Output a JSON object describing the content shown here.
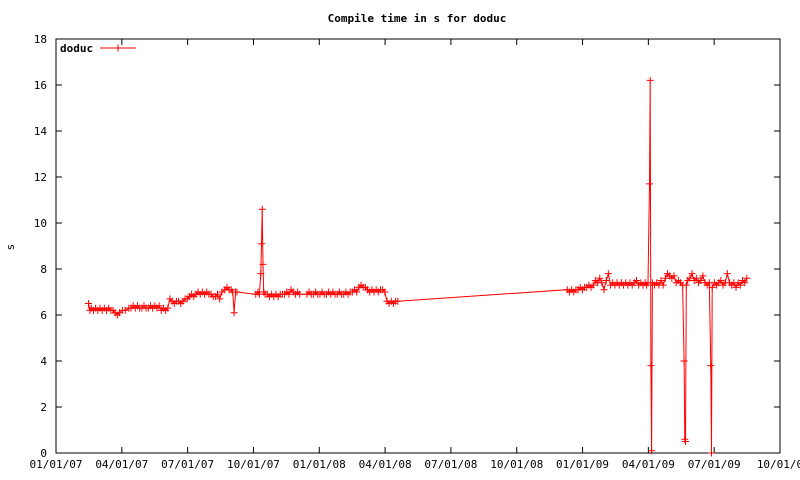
{
  "chart_data": {
    "type": "line",
    "title": "Compile time in s for doduc",
    "xlabel": "",
    "ylabel": "s",
    "x_ticks": [
      "01/01/07",
      "04/01/07",
      "07/01/07",
      "10/01/07",
      "01/01/08",
      "04/01/08",
      "07/01/08",
      "10/01/08",
      "01/01/09",
      "04/01/09",
      "07/01/09",
      "10/01/0"
    ],
    "y_ticks": [
      "0",
      "2",
      "4",
      "6",
      "8",
      "10",
      "12",
      "14",
      "16",
      "18"
    ],
    "xlim": [
      "2007-01-01",
      "2009-10-01"
    ],
    "ylim": [
      0,
      18
    ],
    "grid": false,
    "legend_position": "top-left",
    "series": [
      {
        "name": "doduc",
        "color": "#ff0000",
        "marker": "plus",
        "points": [
          [
            "2007-02-15",
            6.5
          ],
          [
            "2007-02-17",
            6.2
          ],
          [
            "2007-02-19",
            6.3
          ],
          [
            "2007-02-22",
            6.2
          ],
          [
            "2007-02-25",
            6.3
          ],
          [
            "2007-02-28",
            6.2
          ],
          [
            "2007-03-03",
            6.3
          ],
          [
            "2007-03-06",
            6.2
          ],
          [
            "2007-03-09",
            6.3
          ],
          [
            "2007-03-12",
            6.2
          ],
          [
            "2007-03-15",
            6.3
          ],
          [
            "2007-03-18",
            6.2
          ],
          [
            "2007-03-21",
            6.2
          ],
          [
            "2007-03-24",
            6.1
          ],
          [
            "2007-03-27",
            6.0
          ],
          [
            "2007-03-30",
            6.1
          ],
          [
            "2007-04-03",
            6.2
          ],
          [
            "2007-04-07",
            6.2
          ],
          [
            "2007-04-12",
            6.3
          ],
          [
            "2007-04-15",
            6.3
          ],
          [
            "2007-04-18",
            6.4
          ],
          [
            "2007-04-21",
            6.3
          ],
          [
            "2007-04-24",
            6.4
          ],
          [
            "2007-04-27",
            6.3
          ],
          [
            "2007-04-30",
            6.3
          ],
          [
            "2007-05-03",
            6.4
          ],
          [
            "2007-05-06",
            6.3
          ],
          [
            "2007-05-09",
            6.3
          ],
          [
            "2007-05-12",
            6.4
          ],
          [
            "2007-05-15",
            6.3
          ],
          [
            "2007-05-18",
            6.4
          ],
          [
            "2007-05-21",
            6.3
          ],
          [
            "2007-05-24",
            6.4
          ],
          [
            "2007-05-27",
            6.2
          ],
          [
            "2007-05-30",
            6.3
          ],
          [
            "2007-06-02",
            6.2
          ],
          [
            "2007-06-05",
            6.3
          ],
          [
            "2007-06-08",
            6.7
          ],
          [
            "2007-06-11",
            6.6
          ],
          [
            "2007-06-14",
            6.5
          ],
          [
            "2007-06-17",
            6.6
          ],
          [
            "2007-06-20",
            6.6
          ],
          [
            "2007-06-23",
            6.5
          ],
          [
            "2007-06-26",
            6.6
          ],
          [
            "2007-06-29",
            6.7
          ],
          [
            "2007-07-02",
            6.7
          ],
          [
            "2007-07-05",
            6.8
          ],
          [
            "2007-07-08",
            6.9
          ],
          [
            "2007-07-11",
            6.8
          ],
          [
            "2007-07-14",
            6.9
          ],
          [
            "2007-07-17",
            7.0
          ],
          [
            "2007-07-20",
            6.9
          ],
          [
            "2007-07-23",
            7.0
          ],
          [
            "2007-07-26",
            6.9
          ],
          [
            "2007-07-29",
            7.0
          ],
          [
            "2007-08-01",
            6.9
          ],
          [
            "2007-08-04",
            6.9
          ],
          [
            "2007-08-07",
            6.8
          ],
          [
            "2007-08-10",
            6.8
          ],
          [
            "2007-08-13",
            6.9
          ],
          [
            "2007-08-16",
            6.7
          ],
          [
            "2007-08-19",
            7.0
          ],
          [
            "2007-08-23",
            7.1
          ],
          [
            "2007-08-26",
            7.2
          ],
          [
            "2007-08-29",
            7.1
          ],
          [
            "2007-09-01",
            7.1
          ],
          [
            "2007-09-03",
            7.0
          ],
          [
            "2007-09-05",
            6.1
          ],
          [
            "2007-09-07",
            7.0
          ],
          [
            "2007-09-09",
            7.0
          ],
          [
            "2007-10-05",
            6.9
          ],
          [
            "2007-10-08",
            7.0
          ],
          [
            "2007-10-10",
            6.9
          ],
          [
            "2007-10-12",
            7.8
          ],
          [
            "2007-10-13",
            9.1
          ],
          [
            "2007-10-14",
            10.6
          ],
          [
            "2007-10-15",
            8.2
          ],
          [
            "2007-10-16",
            7.0
          ],
          [
            "2007-10-18",
            6.9
          ],
          [
            "2007-10-21",
            6.9
          ],
          [
            "2007-10-24",
            6.8
          ],
          [
            "2007-10-27",
            6.9
          ],
          [
            "2007-10-30",
            6.8
          ],
          [
            "2007-11-02",
            6.9
          ],
          [
            "2007-11-05",
            6.8
          ],
          [
            "2007-11-08",
            6.9
          ],
          [
            "2007-11-11",
            6.9
          ],
          [
            "2007-11-14",
            6.9
          ],
          [
            "2007-11-17",
            7.0
          ],
          [
            "2007-11-20",
            6.9
          ],
          [
            "2007-11-23",
            7.1
          ],
          [
            "2007-11-26",
            7.0
          ],
          [
            "2007-11-29",
            6.9
          ],
          [
            "2007-12-02",
            7.0
          ],
          [
            "2007-12-05",
            6.9
          ],
          [
            "2007-12-15",
            6.9
          ],
          [
            "2007-12-18",
            7.0
          ],
          [
            "2007-12-21",
            6.9
          ],
          [
            "2007-12-24",
            6.9
          ],
          [
            "2007-12-27",
            7.0
          ],
          [
            "2007-12-30",
            6.9
          ],
          [
            "2008-01-02",
            6.9
          ],
          [
            "2008-01-05",
            7.0
          ],
          [
            "2008-01-08",
            6.9
          ],
          [
            "2008-01-11",
            6.9
          ],
          [
            "2008-01-14",
            7.0
          ],
          [
            "2008-01-17",
            6.9
          ],
          [
            "2008-01-20",
            7.0
          ],
          [
            "2008-01-23",
            6.9
          ],
          [
            "2008-01-26",
            6.9
          ],
          [
            "2008-01-29",
            7.0
          ],
          [
            "2008-02-01",
            6.9
          ],
          [
            "2008-02-04",
            6.9
          ],
          [
            "2008-02-07",
            7.0
          ],
          [
            "2008-02-10",
            6.9
          ],
          [
            "2008-02-13",
            7.0
          ],
          [
            "2008-02-16",
            7.0
          ],
          [
            "2008-02-19",
            7.1
          ],
          [
            "2008-02-22",
            7.0
          ],
          [
            "2008-02-25",
            7.2
          ],
          [
            "2008-02-28",
            7.3
          ],
          [
            "2008-03-02",
            7.2
          ],
          [
            "2008-03-05",
            7.2
          ],
          [
            "2008-03-08",
            7.1
          ],
          [
            "2008-03-11",
            7.0
          ],
          [
            "2008-03-14",
            7.1
          ],
          [
            "2008-03-17",
            7.0
          ],
          [
            "2008-03-20",
            7.1
          ],
          [
            "2008-03-23",
            7.0
          ],
          [
            "2008-03-26",
            7.1
          ],
          [
            "2008-03-29",
            7.1
          ],
          [
            "2008-04-01",
            7.0
          ],
          [
            "2008-04-04",
            6.6
          ],
          [
            "2008-04-07",
            6.5
          ],
          [
            "2008-04-10",
            6.6
          ],
          [
            "2008-04-13",
            6.5
          ],
          [
            "2008-04-16",
            6.6
          ],
          [
            "2008-04-19",
            6.6
          ],
          [
            "2008-12-10",
            7.1
          ],
          [
            "2008-12-13",
            7.0
          ],
          [
            "2008-12-16",
            7.1
          ],
          [
            "2008-12-19",
            7.0
          ],
          [
            "2008-12-22",
            7.1
          ],
          [
            "2008-12-25",
            7.1
          ],
          [
            "2008-12-28",
            7.2
          ],
          [
            "2008-12-31",
            7.1
          ],
          [
            "2009-01-03",
            7.2
          ],
          [
            "2009-01-06",
            7.2
          ],
          [
            "2009-01-09",
            7.3
          ],
          [
            "2009-01-12",
            7.2
          ],
          [
            "2009-01-15",
            7.3
          ],
          [
            "2009-01-18",
            7.5
          ],
          [
            "2009-01-21",
            7.4
          ],
          [
            "2009-01-24",
            7.6
          ],
          [
            "2009-01-27",
            7.4
          ],
          [
            "2009-01-30",
            7.1
          ],
          [
            "2009-02-02",
            7.5
          ],
          [
            "2009-02-05",
            7.8
          ],
          [
            "2009-02-08",
            7.3
          ],
          [
            "2009-02-11",
            7.4
          ],
          [
            "2009-02-14",
            7.3
          ],
          [
            "2009-02-17",
            7.4
          ],
          [
            "2009-02-20",
            7.3
          ],
          [
            "2009-02-23",
            7.4
          ],
          [
            "2009-02-26",
            7.3
          ],
          [
            "2009-03-01",
            7.4
          ],
          [
            "2009-03-04",
            7.3
          ],
          [
            "2009-03-07",
            7.4
          ],
          [
            "2009-03-10",
            7.3
          ],
          [
            "2009-03-13",
            7.4
          ],
          [
            "2009-03-16",
            7.5
          ],
          [
            "2009-03-19",
            7.3
          ],
          [
            "2009-03-22",
            7.4
          ],
          [
            "2009-03-25",
            7.3
          ],
          [
            "2009-03-28",
            7.4
          ],
          [
            "2009-03-30",
            7.3
          ],
          [
            "2009-04-01",
            7.4
          ],
          [
            "2009-04-03",
            11.7
          ],
          [
            "2009-04-04",
            16.2
          ],
          [
            "2009-04-05",
            3.8
          ],
          [
            "2009-04-06",
            0.1
          ],
          [
            "2009-04-07",
            7.4
          ],
          [
            "2009-04-10",
            7.3
          ],
          [
            "2009-04-13",
            7.4
          ],
          [
            "2009-04-16",
            7.3
          ],
          [
            "2009-04-19",
            7.5
          ],
          [
            "2009-04-22",
            7.3
          ],
          [
            "2009-04-25",
            7.6
          ],
          [
            "2009-04-28",
            7.8
          ],
          [
            "2009-05-01",
            7.7
          ],
          [
            "2009-05-04",
            7.6
          ],
          [
            "2009-05-07",
            7.7
          ],
          [
            "2009-05-10",
            7.4
          ],
          [
            "2009-05-13",
            7.5
          ],
          [
            "2009-05-16",
            7.4
          ],
          [
            "2009-05-19",
            7.3
          ],
          [
            "2009-05-21",
            4.0
          ],
          [
            "2009-05-22",
            0.6
          ],
          [
            "2009-05-23",
            0.5
          ],
          [
            "2009-05-24",
            7.3
          ],
          [
            "2009-05-26",
            7.5
          ],
          [
            "2009-05-29",
            7.6
          ],
          [
            "2009-06-01",
            7.8
          ],
          [
            "2009-06-04",
            7.5
          ],
          [
            "2009-06-07",
            7.6
          ],
          [
            "2009-06-10",
            7.4
          ],
          [
            "2009-06-13",
            7.5
          ],
          [
            "2009-06-16",
            7.7
          ],
          [
            "2009-06-19",
            7.4
          ],
          [
            "2009-06-22",
            7.3
          ],
          [
            "2009-06-25",
            7.4
          ],
          [
            "2009-06-27",
            3.8
          ],
          [
            "2009-06-28",
            0.0
          ],
          [
            "2009-06-29",
            7.2
          ],
          [
            "2009-07-02",
            7.4
          ],
          [
            "2009-07-05",
            7.3
          ],
          [
            "2009-07-08",
            7.4
          ],
          [
            "2009-07-11",
            7.5
          ],
          [
            "2009-07-14",
            7.3
          ],
          [
            "2009-07-17",
            7.4
          ],
          [
            "2009-07-20",
            7.8
          ],
          [
            "2009-07-23",
            7.4
          ],
          [
            "2009-07-26",
            7.3
          ],
          [
            "2009-07-29",
            7.4
          ],
          [
            "2009-08-01",
            7.2
          ],
          [
            "2009-08-04",
            7.4
          ],
          [
            "2009-08-07",
            7.3
          ],
          [
            "2009-08-10",
            7.5
          ],
          [
            "2009-08-13",
            7.4
          ],
          [
            "2009-08-16",
            7.6
          ]
        ]
      }
    ]
  }
}
